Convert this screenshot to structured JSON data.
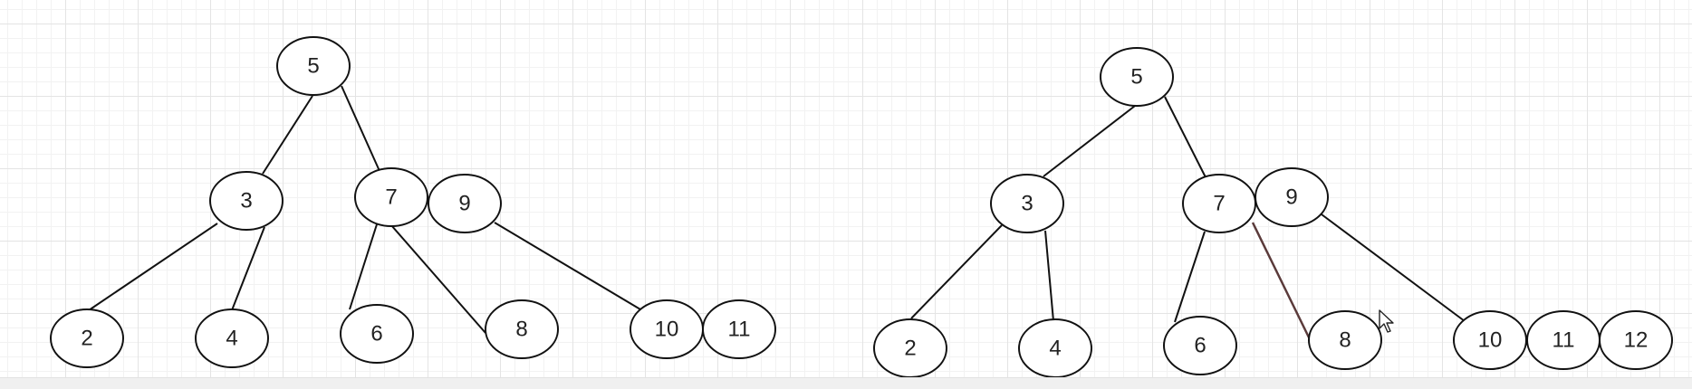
{
  "diagrams": [
    {
      "id": "left-tree",
      "nodes": [
        {
          "label": "5"
        },
        {
          "label": "3"
        },
        {
          "label": "7"
        },
        {
          "label": "9"
        },
        {
          "label": "2"
        },
        {
          "label": "4"
        },
        {
          "label": "6"
        },
        {
          "label": "8"
        },
        {
          "label": "10"
        },
        {
          "label": "11"
        }
      ]
    },
    {
      "id": "right-tree",
      "nodes": [
        {
          "label": "5"
        },
        {
          "label": "3"
        },
        {
          "label": "7"
        },
        {
          "label": "9"
        },
        {
          "label": "2"
        },
        {
          "label": "4"
        },
        {
          "label": "6"
        },
        {
          "label": "8"
        },
        {
          "label": "10"
        },
        {
          "label": "11"
        },
        {
          "label": "12"
        }
      ]
    }
  ],
  "colors": {
    "stroke": "#111111",
    "highlight_edge": "#5a3a3a",
    "grid": "#e4e4e4",
    "background": "#ffffff"
  }
}
